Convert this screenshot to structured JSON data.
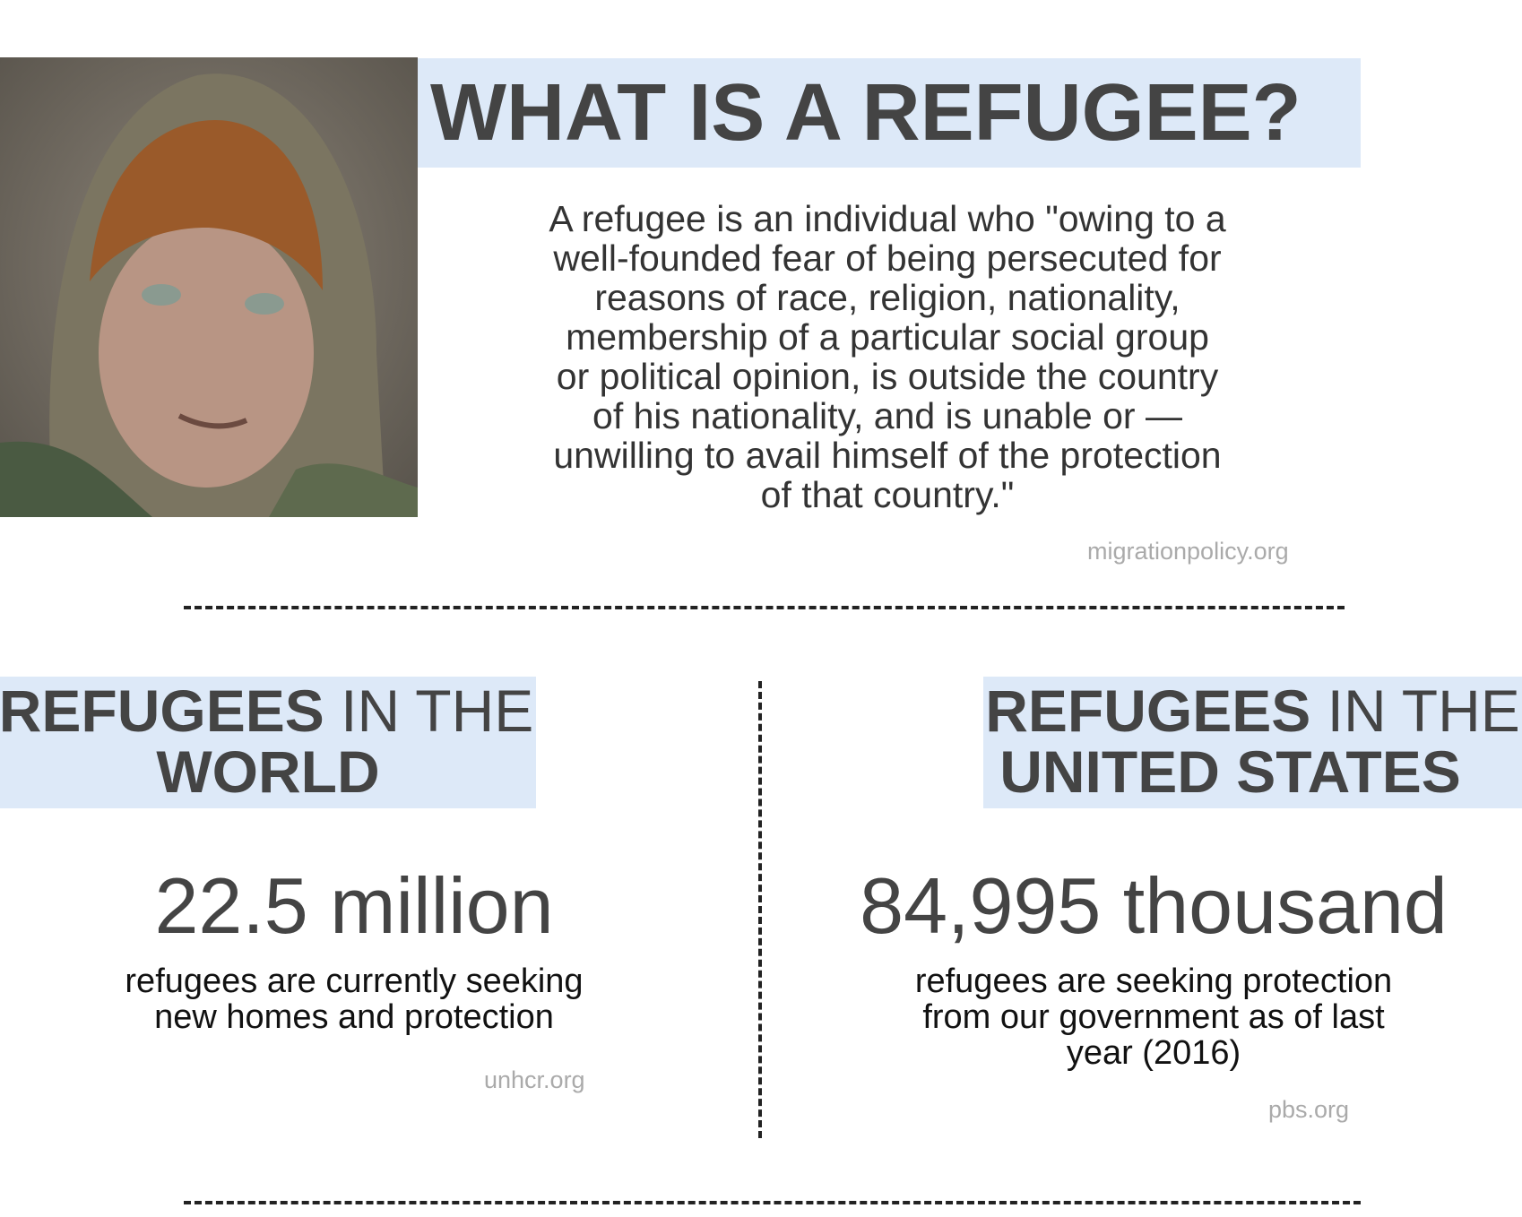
{
  "header": {
    "title": "WHAT IS A REFUGEE?"
  },
  "definition": {
    "lines": [
      "A refugee is an individual who \"owing to a",
      "well-founded fear of being persecuted for",
      "reasons of race, religion, nationality,",
      "membership of a particular social group",
      "or political opinion, is outside the country",
      "of his nationality, and is unable or —",
      "unwilling to avail himself of the protection",
      "of that country.\""
    ],
    "source": "migrationpolicy.org"
  },
  "sections": [
    {
      "heading_bold": "REFUGEES",
      "heading_rest": "IN THE",
      "heading_line2": "WORLD",
      "figure": "22.5 million",
      "description_lines": [
        "refugees are currently seeking",
        "new homes and protection"
      ],
      "source": "unhcr.org"
    },
    {
      "heading_bold": "REFUGEES",
      "heading_rest": "IN THE",
      "heading_line2": "UNITED STATES",
      "figure": "84,995 thousand",
      "description_lines": [
        "refugees are seeking protection",
        "from our government as of last",
        "year (2016)"
      ],
      "source": "pbs.org"
    }
  ]
}
